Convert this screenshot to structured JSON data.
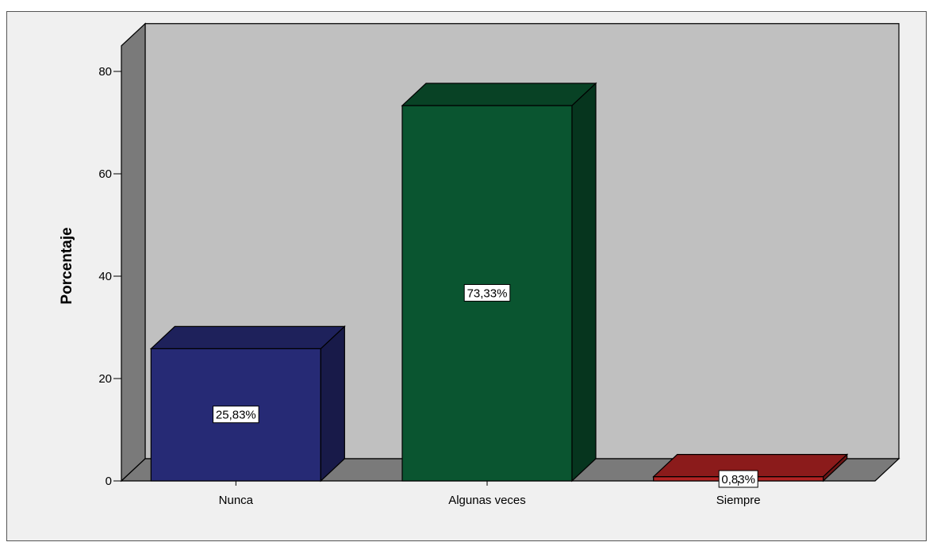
{
  "chart_data": {
    "type": "bar",
    "title": "",
    "xlabel": "",
    "ylabel": "Porcentaje",
    "ylim": [
      0,
      85
    ],
    "yticks": [
      0,
      20,
      40,
      60,
      80
    ],
    "categories": [
      "Nunca",
      "Algunas veces",
      "Siempre"
    ],
    "values": [
      25.83,
      73.33,
      0.83
    ],
    "data_labels": [
      "25,83%",
      "73,33%",
      "0,83%"
    ],
    "colors": [
      "#262a75",
      "#0a5530",
      "#b22222"
    ],
    "grid": false,
    "legend": "none",
    "three_d": true
  }
}
